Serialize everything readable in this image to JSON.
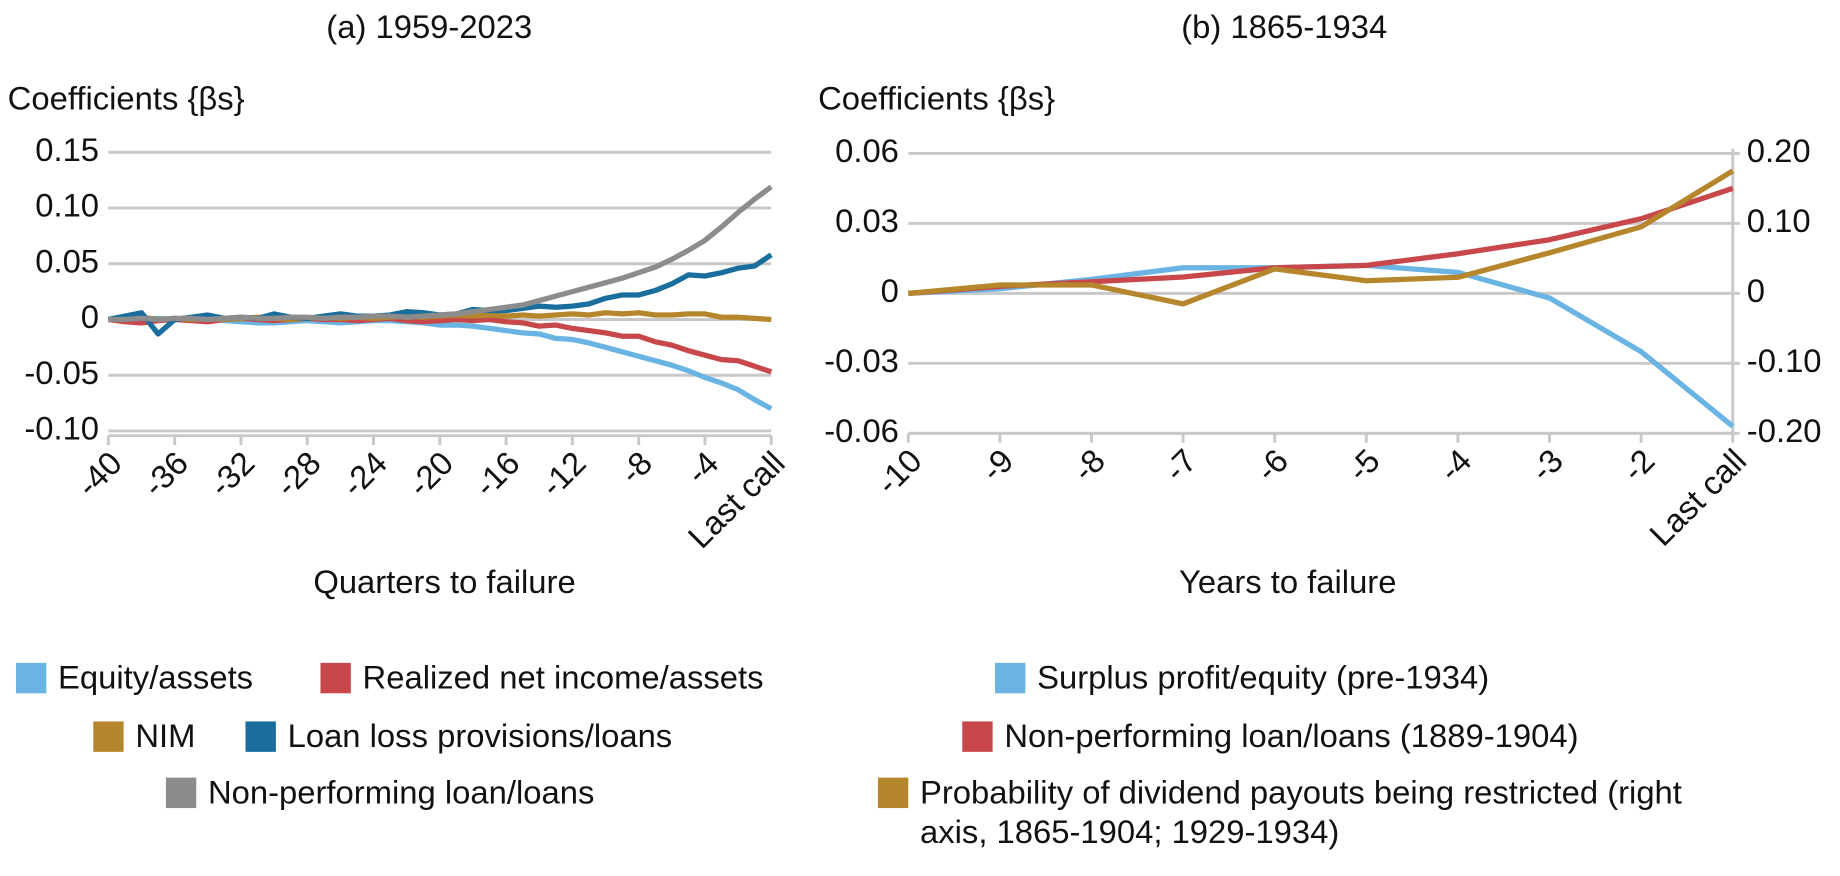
{
  "chart_data": [
    {
      "type": "line",
      "title": "(a) 1959-2023",
      "y_label": "Coefficients {βs}",
      "x_label": "Quarters to failure",
      "x": [
        -40,
        -39,
        -38,
        -37,
        -36,
        -35,
        -34,
        -33,
        -32,
        -31,
        -30,
        -29,
        -28,
        -27,
        -26,
        -25,
        -24,
        -23,
        -22,
        -21,
        -20,
        -19,
        -18,
        -17,
        -16,
        -15,
        -14,
        -13,
        -12,
        -11,
        -10,
        -9,
        -8,
        -7,
        -6,
        -5,
        -4,
        -3,
        -2,
        -1,
        0
      ],
      "xlim": [
        -40,
        0
      ],
      "xticks": [
        -40,
        -36,
        -32,
        -28,
        -24,
        -20,
        -16,
        -12,
        -8,
        -4,
        {
          "value": 0,
          "label": "Last call"
        }
      ],
      "ylim": [
        -0.1,
        0.15
      ],
      "yticks": [
        {
          "value": -0.1,
          "label": "-0.10"
        },
        -0.05,
        0,
        0.05,
        {
          "value": 0.1,
          "label": "0.10"
        },
        0.15
      ],
      "grid": true,
      "series": [
        {
          "name": "Equity/assets",
          "color": "#6ab4e4",
          "values": [
            0,
            0,
            0,
            0.001,
            0,
            0,
            0,
            -0.001,
            -0.002,
            -0.003,
            -0.003,
            -0.002,
            -0.001,
            -0.002,
            -0.003,
            -0.002,
            -0.001,
            -0.001,
            -0.002,
            -0.003,
            -0.005,
            -0.005,
            -0.006,
            -0.008,
            -0.01,
            -0.012,
            -0.013,
            -0.017,
            -0.018,
            -0.021,
            -0.025,
            -0.029,
            -0.033,
            -0.037,
            -0.041,
            -0.046,
            -0.052,
            -0.057,
            -0.063,
            -0.072,
            -0.08
          ]
        },
        {
          "name": "Realized net income/assets",
          "color": "#c8474a",
          "values": [
            0,
            -0.002,
            -0.003,
            -0.001,
            0,
            -0.001,
            -0.002,
            0,
            0.001,
            0,
            -0.001,
            0,
            0.001,
            0,
            0,
            -0.001,
            0,
            0.001,
            -0.001,
            -0.002,
            -0.001,
            0,
            -0.001,
            0,
            -0.002,
            -0.003,
            -0.006,
            -0.005,
            -0.008,
            -0.01,
            -0.012,
            -0.015,
            -0.015,
            -0.02,
            -0.023,
            -0.028,
            -0.032,
            -0.036,
            -0.037,
            -0.042,
            -0.047
          ]
        },
        {
          "name": "NIM",
          "color": "#b5862c",
          "values": [
            0,
            0.001,
            0.002,
            0,
            0.001,
            0,
            0.001,
            0,
            0.001,
            0.002,
            0.001,
            0,
            0.001,
            0.002,
            0.001,
            0.002,
            0.001,
            0.002,
            0.003,
            0.002,
            0.003,
            0.004,
            0.003,
            0.004,
            0.003,
            0.004,
            0.003,
            0.004,
            0.005,
            0.004,
            0.006,
            0.005,
            0.006,
            0.004,
            0.004,
            0.005,
            0.005,
            0.002,
            0.002,
            0.001,
            0
          ]
        },
        {
          "name": "Loan loss provisions/loans",
          "color": "#1a6e9e",
          "values": [
            0,
            0.003,
            0.006,
            -0.013,
            0,
            0.002,
            0.004,
            0.001,
            0.002,
            0.001,
            0.005,
            0.002,
            0.001,
            0.003,
            0.005,
            0.003,
            0.003,
            0.004,
            0.007,
            0.006,
            0.004,
            0.005,
            0.009,
            0.008,
            0.008,
            0.01,
            0.012,
            0.011,
            0.012,
            0.014,
            0.019,
            0.022,
            0.022,
            0.026,
            0.032,
            0.04,
            0.039,
            0.042,
            0.046,
            0.048,
            0.058
          ]
        },
        {
          "name": "Non-performing loan/loans",
          "color": "#8c8c8c",
          "values": [
            0,
            0,
            0.001,
            0,
            0.001,
            0.001,
            0,
            0.001,
            0.002,
            0.001,
            0.001,
            0.002,
            0.002,
            0.001,
            0.002,
            0.002,
            0.003,
            0.003,
            0.002,
            0.003,
            0.004,
            0.005,
            0.007,
            0.009,
            0.011,
            0.013,
            0.017,
            0.021,
            0.025,
            0.029,
            0.033,
            0.037,
            0.042,
            0.047,
            0.054,
            0.062,
            0.071,
            0.083,
            0.096,
            0.108,
            0.119
          ]
        }
      ]
    },
    {
      "type": "line",
      "title": "(b) 1865-1934",
      "y_label": "Coefficients {βs}",
      "x_label": "Years to failure",
      "categories": [
        "-10",
        "-9",
        "-8",
        "-7",
        "-6",
        "-5",
        "-4",
        "-3",
        "-2",
        "Last call"
      ],
      "ylim": [
        -0.06,
        0.06
      ],
      "yticks": [
        -0.06,
        -0.03,
        0,
        0.03,
        0.06
      ],
      "y2lim": [
        -0.2,
        0.2
      ],
      "y2ticks": [
        {
          "value": -0.2,
          "label": "-0.20"
        },
        {
          "value": -0.1,
          "label": "-0.10"
        },
        0,
        {
          "value": 0.1,
          "label": "0.10"
        },
        {
          "value": 0.2,
          "label": "0.20"
        }
      ],
      "grid": true,
      "series": [
        {
          "name": "Surplus profit/equity (pre-1934)",
          "color": "#6ab4e4",
          "values": [
            0,
            0.002,
            0.006,
            0.011,
            0.011,
            0.012,
            0.009,
            -0.002,
            -0.025,
            -0.057
          ]
        },
        {
          "name": "Non-performing loan/loans (1889-1904)",
          "color": "#c8474a",
          "values": [
            0,
            0.003,
            0.005,
            0.007,
            0.011,
            0.012,
            0.017,
            0.023,
            0.032,
            0.045
          ]
        },
        {
          "name": "Probability of dividend payouts being restricted (right axis, 1865-1904; 1929-1934)",
          "color": "#b5862c",
          "axis": "y2",
          "values": [
            0,
            0.012,
            0.012,
            -0.015,
            0.035,
            0.018,
            0.023,
            0.058,
            0.095,
            0.175
          ]
        }
      ]
    }
  ]
}
